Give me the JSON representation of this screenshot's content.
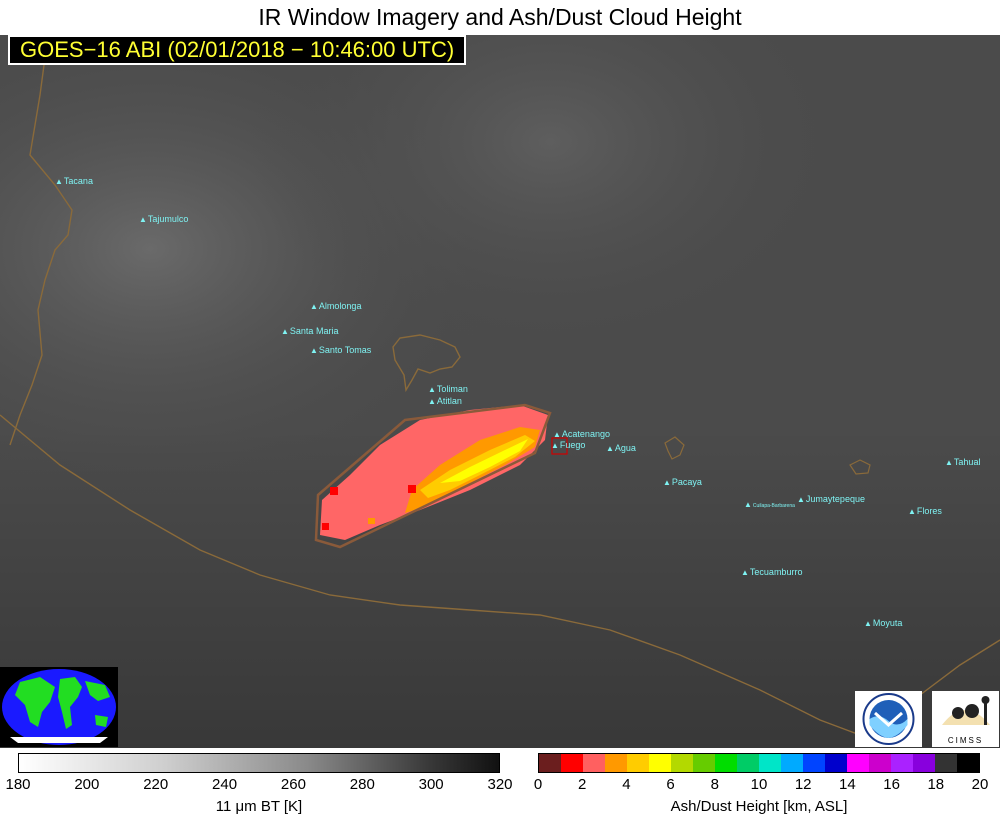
{
  "title": "IR Window Imagery and Ash/Dust Cloud Height",
  "subtitle": "GOES−16 ABI (02/01/2018 − 10:46:00 UTC)",
  "volcanoes": [
    {
      "id": "tacana",
      "label": "Tacana"
    },
    {
      "id": "tajumulco",
      "label": "Tajumulco"
    },
    {
      "id": "almolonga",
      "label": "Almolonga"
    },
    {
      "id": "santa-maria",
      "label": "Santa Maria"
    },
    {
      "id": "santo-tomas",
      "label": "Santo Tomas"
    },
    {
      "id": "toliman",
      "label": "Toliman"
    },
    {
      "id": "atitlan",
      "label": "Atitlan"
    },
    {
      "id": "acatenango",
      "label": "Acatenango"
    },
    {
      "id": "fuego",
      "label": "Fuego"
    },
    {
      "id": "agua",
      "label": "Agua"
    },
    {
      "id": "pacaya",
      "label": "Pacaya"
    },
    {
      "id": "cuilapa",
      "label": "Cuilapa-Barbarena"
    },
    {
      "id": "jumaytepeque",
      "label": "Jumaytepeque"
    },
    {
      "id": "tahual",
      "label": "Tahual"
    },
    {
      "id": "flores",
      "label": "Flores"
    },
    {
      "id": "tecuamburro",
      "label": "Tecuamburro"
    },
    {
      "id": "moyuta",
      "label": "Moyuta"
    }
  ],
  "bt_colorbar": {
    "ticks": [
      "180",
      "200",
      "220",
      "240",
      "260",
      "280",
      "300",
      "320"
    ],
    "label": "11 μm BT [K]"
  },
  "ash_colorbar": {
    "ticks": [
      "0",
      "2",
      "4",
      "6",
      "8",
      "10",
      "12",
      "14",
      "16",
      "18",
      "20"
    ],
    "label": "Ash/Dust Height [km, ASL]",
    "colors": [
      "#6b1e1e",
      "#ff0000",
      "#ff6060",
      "#ff9900",
      "#ffcc00",
      "#ffff00",
      "#b3d900",
      "#66cc00",
      "#00dd00",
      "#00cc66",
      "#00e5c8",
      "#00aaff",
      "#0044ff",
      "#0000cc",
      "#ff00ff",
      "#cc00cc",
      "#aa22ff",
      "#8800dd",
      "#333333",
      "#000000"
    ]
  },
  "logos": {
    "noaa": "NOAA",
    "cimss": "CIMSS"
  }
}
